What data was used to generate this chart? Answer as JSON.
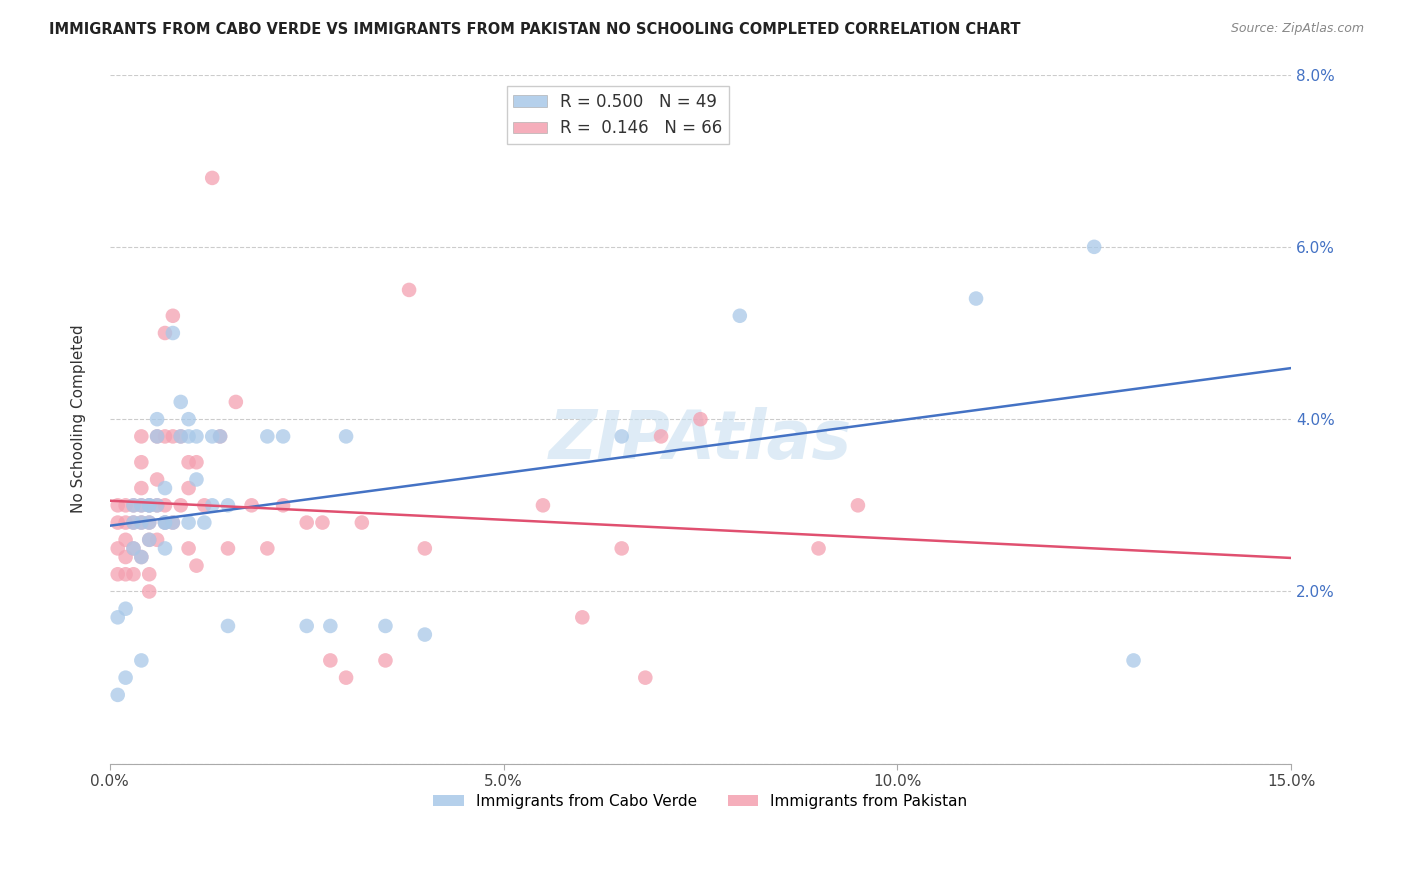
{
  "title": "IMMIGRANTS FROM CABO VERDE VS IMMIGRANTS FROM PAKISTAN NO SCHOOLING COMPLETED CORRELATION CHART",
  "source": "Source: ZipAtlas.com",
  "ylabel": "No Schooling Completed",
  "xmin": 0.0,
  "xmax": 0.15,
  "ymin": 0.0,
  "ymax": 0.08,
  "yticks": [
    0.0,
    0.02,
    0.04,
    0.06,
    0.08
  ],
  "xticks": [
    0.0,
    0.05,
    0.1,
    0.15
  ],
  "xtick_labels": [
    "0.0%",
    "5.0%",
    "10.0%",
    "15.0%"
  ],
  "ytick_labels_right": [
    "",
    "2.0%",
    "4.0%",
    "6.0%",
    "8.0%"
  ],
  "legend_labels": [
    "Immigrants from Cabo Verde",
    "Immigrants from Pakistan"
  ],
  "legend_R": [
    0.5,
    0.146
  ],
  "legend_N": [
    49,
    66
  ],
  "blue_color": "#a8c8e8",
  "pink_color": "#f4a0b0",
  "line_blue": "#4472c4",
  "line_pink": "#e05070",
  "watermark": "ZIPAtlas",
  "cabo_verde_x": [
    0.001,
    0.001,
    0.002,
    0.002,
    0.003,
    0.003,
    0.003,
    0.004,
    0.004,
    0.004,
    0.004,
    0.005,
    0.005,
    0.005,
    0.005,
    0.006,
    0.006,
    0.006,
    0.007,
    0.007,
    0.007,
    0.007,
    0.008,
    0.008,
    0.009,
    0.009,
    0.01,
    0.01,
    0.01,
    0.011,
    0.011,
    0.012,
    0.013,
    0.013,
    0.014,
    0.015,
    0.015,
    0.02,
    0.022,
    0.025,
    0.028,
    0.03,
    0.035,
    0.04,
    0.065,
    0.08,
    0.11,
    0.125,
    0.13
  ],
  "cabo_verde_y": [
    0.017,
    0.008,
    0.018,
    0.01,
    0.03,
    0.028,
    0.025,
    0.03,
    0.028,
    0.024,
    0.012,
    0.03,
    0.028,
    0.03,
    0.026,
    0.04,
    0.038,
    0.03,
    0.028,
    0.032,
    0.028,
    0.025,
    0.05,
    0.028,
    0.042,
    0.038,
    0.04,
    0.028,
    0.038,
    0.038,
    0.033,
    0.028,
    0.03,
    0.038,
    0.038,
    0.03,
    0.016,
    0.038,
    0.038,
    0.016,
    0.016,
    0.038,
    0.016,
    0.015,
    0.038,
    0.052,
    0.054,
    0.06,
    0.012
  ],
  "pakistan_x": [
    0.001,
    0.001,
    0.001,
    0.001,
    0.002,
    0.002,
    0.002,
    0.002,
    0.002,
    0.003,
    0.003,
    0.003,
    0.003,
    0.004,
    0.004,
    0.004,
    0.004,
    0.004,
    0.004,
    0.005,
    0.005,
    0.005,
    0.005,
    0.005,
    0.006,
    0.006,
    0.006,
    0.006,
    0.007,
    0.007,
    0.007,
    0.007,
    0.008,
    0.008,
    0.008,
    0.009,
    0.009,
    0.01,
    0.01,
    0.01,
    0.011,
    0.011,
    0.012,
    0.013,
    0.014,
    0.015,
    0.016,
    0.018,
    0.02,
    0.022,
    0.025,
    0.027,
    0.028,
    0.03,
    0.032,
    0.035,
    0.038,
    0.04,
    0.055,
    0.06,
    0.065,
    0.068,
    0.07,
    0.075,
    0.09,
    0.095
  ],
  "pakistan_y": [
    0.03,
    0.028,
    0.025,
    0.022,
    0.03,
    0.028,
    0.026,
    0.024,
    0.022,
    0.03,
    0.028,
    0.025,
    0.022,
    0.038,
    0.035,
    0.032,
    0.03,
    0.028,
    0.024,
    0.03,
    0.028,
    0.026,
    0.022,
    0.02,
    0.038,
    0.033,
    0.03,
    0.026,
    0.05,
    0.038,
    0.03,
    0.028,
    0.052,
    0.038,
    0.028,
    0.038,
    0.03,
    0.035,
    0.032,
    0.025,
    0.035,
    0.023,
    0.03,
    0.068,
    0.038,
    0.025,
    0.042,
    0.03,
    0.025,
    0.03,
    0.028,
    0.028,
    0.012,
    0.01,
    0.028,
    0.012,
    0.055,
    0.025,
    0.03,
    0.017,
    0.025,
    0.01,
    0.038,
    0.04,
    0.025,
    0.03
  ]
}
